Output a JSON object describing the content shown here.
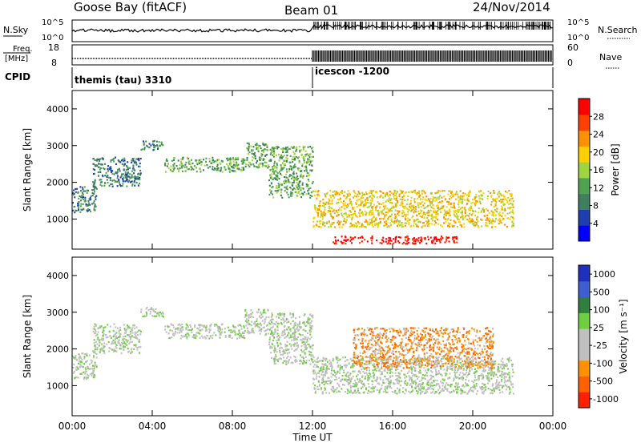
{
  "header": {
    "station": "Goose Bay (fitACF)",
    "beam": "Beam 01",
    "date": "24/Nov/2014"
  },
  "nsky_panel": {
    "left_label": "N.Sky",
    "left_ticks": [
      "10^5",
      "10^0"
    ],
    "right_ticks": [
      "10^5",
      "10^0"
    ],
    "right_label": "N.Search"
  },
  "freq_panel": {
    "left_label_top": "Freq.",
    "left_label_bottom": "[MHz]",
    "left_ticks": [
      "18",
      "8"
    ],
    "right_ticks": [
      "60",
      "0"
    ],
    "right_label": "Nave"
  },
  "cpid": {
    "label": "CPID",
    "segments": [
      {
        "name": "themis (tau) 3310",
        "start_hour": 0
      },
      {
        "name": "icescon -1200",
        "start_hour": 12
      }
    ]
  },
  "colors": {
    "power_scale": [
      "#0000ff",
      "#1f3fb0",
      "#3f7f5f",
      "#4fa34f",
      "#9fd63f",
      "#ffd000",
      "#ff9000",
      "#ff4000",
      "#ff0000"
    ],
    "velocity_scale": [
      "#1f2fc0",
      "#3f5fd0",
      "#2f7f3f",
      "#6fcf3f",
      "#c0c0c0",
      "#c0c0c0",
      "#ff9000",
      "#ff6000",
      "#ff2000"
    ]
  },
  "chart_data": [
    {
      "type": "heatmap",
      "quantity": "power",
      "ylabel": "Slant Range [km]",
      "ylim": [
        180,
        4500
      ],
      "yticks": [
        1000,
        2000,
        3000,
        4000
      ],
      "xlim_hours": [
        0,
        24
      ],
      "colorbar": {
        "label": "Power [dB]",
        "ticks": [
          4,
          8,
          12,
          16,
          20,
          24,
          28
        ]
      },
      "scatter_regions": [
        {
          "t_start": 0.0,
          "t_end": 1.2,
          "r_low": 1200,
          "r_high": 1900,
          "level": 2
        },
        {
          "t_start": 1.0,
          "t_end": 3.4,
          "r_low": 1900,
          "r_high": 2700,
          "level": 2
        },
        {
          "t_start": 3.4,
          "t_end": 4.6,
          "r_low": 2900,
          "r_high": 3150,
          "level": 2
        },
        {
          "t_start": 4.6,
          "t_end": 8.6,
          "r_low": 2300,
          "r_high": 2700,
          "level": 3
        },
        {
          "t_start": 8.6,
          "t_end": 9.8,
          "r_low": 2400,
          "r_high": 3100,
          "level": 3
        },
        {
          "t_start": 9.8,
          "t_end": 12.0,
          "r_low": 1600,
          "r_high": 3000,
          "level": 3
        },
        {
          "t_start": 12.0,
          "t_end": 22.0,
          "r_low": 800,
          "r_high": 1800,
          "level": 5
        },
        {
          "t_start": 13.0,
          "t_end": 19.2,
          "r_low": 350,
          "r_high": 550,
          "level": 8
        }
      ]
    },
    {
      "type": "heatmap",
      "quantity": "velocity",
      "xlabel": "Time UT",
      "ylabel": "Slant Range [km]",
      "ylim": [
        180,
        4500
      ],
      "yticks": [
        1000,
        2000,
        3000,
        4000
      ],
      "xlim_hours": [
        0,
        24
      ],
      "xticks": [
        "00:00",
        "04:00",
        "08:00",
        "12:00",
        "16:00",
        "20:00",
        "00:00"
      ],
      "colorbar": {
        "label": "Velocity [m s⁻¹]",
        "ticks": [
          1000,
          500,
          100,
          25,
          -25,
          -100,
          -500,
          -1000
        ]
      },
      "scatter_regions": [
        {
          "t_start": 0.0,
          "t_end": 1.2,
          "r_low": 1200,
          "r_high": 1900,
          "level": 4
        },
        {
          "t_start": 1.0,
          "t_end": 3.4,
          "r_low": 1900,
          "r_high": 2700,
          "level": 4
        },
        {
          "t_start": 3.4,
          "t_end": 4.6,
          "r_low": 2900,
          "r_high": 3150,
          "level": 4
        },
        {
          "t_start": 4.6,
          "t_end": 8.6,
          "r_low": 2300,
          "r_high": 2700,
          "level": 4
        },
        {
          "t_start": 8.6,
          "t_end": 9.8,
          "r_low": 2400,
          "r_high": 3100,
          "level": 4
        },
        {
          "t_start": 9.8,
          "t_end": 12.0,
          "r_low": 1600,
          "r_high": 3000,
          "level": 4
        },
        {
          "t_start": 12.0,
          "t_end": 22.0,
          "r_low": 800,
          "r_high": 1800,
          "level": 4
        },
        {
          "t_start": 14.0,
          "t_end": 21.0,
          "r_low": 1500,
          "r_high": 2600,
          "level": 6
        }
      ]
    }
  ]
}
